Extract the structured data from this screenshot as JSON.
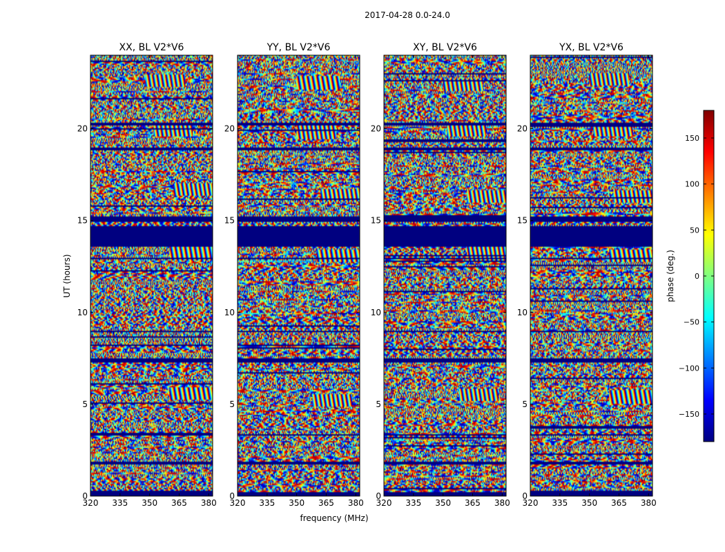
{
  "suptitle": "2017-04-28 0.0-24.0",
  "chart_data": {
    "type": "heatmap",
    "xlabel": "frequency (MHz)",
    "ylabel": "UT (hours)",
    "xlim": [
      320,
      382
    ],
    "ylim": [
      0,
      24
    ],
    "xticks": [
      320,
      335,
      350,
      365,
      380
    ],
    "yticks": [
      0,
      5,
      10,
      15,
      20
    ],
    "panels": [
      {
        "title": "XX, BL V2*V6",
        "seed": 11,
        "fringes": [
          [
            16.7,
            362,
            382
          ],
          [
            19.9,
            352,
            372
          ],
          [
            5.6,
            360,
            382
          ],
          [
            13.2,
            360,
            382
          ],
          [
            22.6,
            348,
            368
          ]
        ]
      },
      {
        "title": "YY, BL V2*V6",
        "seed": 23,
        "fringes": [
          [
            16.4,
            362,
            382
          ],
          [
            19.8,
            350,
            370
          ],
          [
            5.2,
            358,
            378
          ],
          [
            13.1,
            360,
            382
          ],
          [
            22.5,
            350,
            372
          ]
        ]
      },
      {
        "title": "XY, BL V2*V6",
        "seed": 37,
        "fringes": [
          [
            16.3,
            362,
            382
          ],
          [
            19.9,
            352,
            372
          ],
          [
            5.5,
            358,
            378
          ],
          [
            13.2,
            362,
            382
          ],
          [
            22.4,
            350,
            370
          ]
        ]
      },
      {
        "title": "YX, BL V2*V6",
        "seed": 53,
        "fringes": [
          [
            16.3,
            362,
            382
          ],
          [
            19.9,
            352,
            372
          ],
          [
            5.4,
            360,
            382
          ],
          [
            13.1,
            360,
            382
          ],
          [
            22.7,
            350,
            370
          ]
        ]
      }
    ],
    "blank_bands": [
      [
        13.6,
        14.7
      ],
      [
        14.95,
        15.2
      ],
      [
        20.2,
        20.35
      ],
      [
        18.85,
        19.0
      ],
      [
        7.3,
        7.5
      ],
      [
        8.9,
        9.0
      ],
      [
        0.0,
        0.25
      ],
      [
        1.75,
        1.9
      ],
      [
        3.3,
        3.4
      ],
      [
        12.9,
        13.0
      ]
    ],
    "colorbar": {
      "label": "phase (deg.)",
      "min": -180,
      "max": 180,
      "ticks": [
        150,
        100,
        50,
        0,
        -50,
        -100,
        -150
      ],
      "colormap": "jet"
    }
  }
}
